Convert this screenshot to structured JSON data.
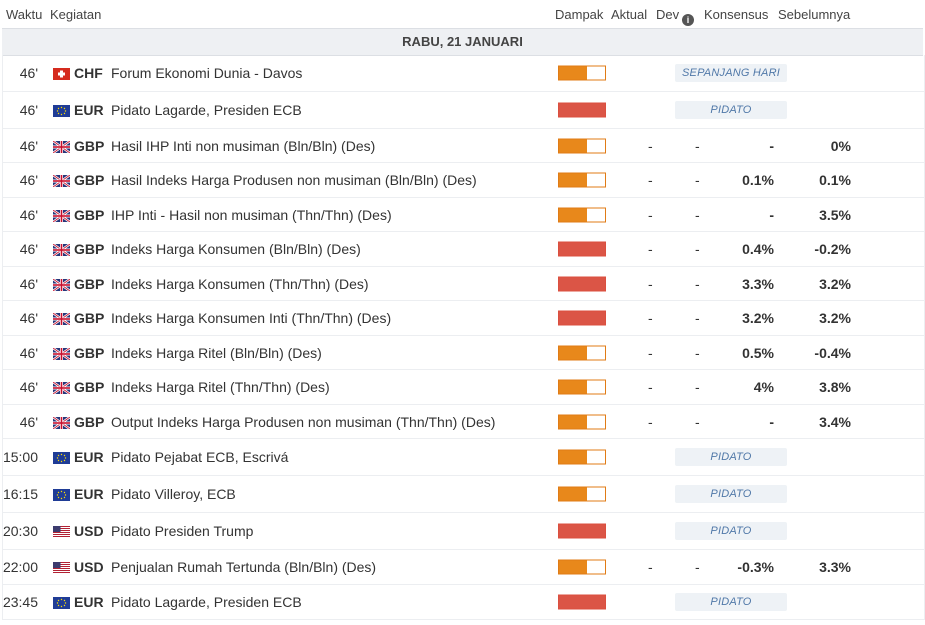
{
  "header": {
    "time": "Waktu",
    "event": "Kegiatan",
    "impact": "Dampak",
    "actual": "Aktual",
    "dev": "Dev",
    "consensus": "Konsensus",
    "previous": "Sebelumnya"
  },
  "date_label": "RABU, 21 JANUARI",
  "colors": {
    "medium_impact": "#e8881b",
    "high_impact": "#db5546",
    "badge_text": "#5078a8"
  },
  "rows": [
    {
      "time": "46'",
      "flag": "CH",
      "currency": "CHF",
      "event": "Forum Ekonomi Dunia - Davos",
      "impact": "medium",
      "impact_level": 0.6,
      "note": "SEPANJANG HARI"
    },
    {
      "time": "46'",
      "flag": "EU",
      "currency": "EUR",
      "event": "Pidato Lagarde, Presiden ECB",
      "impact": "high",
      "impact_level": 1.0,
      "note": "PIDATO"
    },
    {
      "time": "46'",
      "flag": "GB",
      "currency": "GBP",
      "event": "Hasil IHP Inti non musiman (Bln/Bln) (Des)",
      "impact": "medium",
      "impact_level": 0.6,
      "actual": "-",
      "dev": "-",
      "consensus": "-",
      "previous": "0%"
    },
    {
      "time": "46'",
      "flag": "GB",
      "currency": "GBP",
      "event": "Hasil Indeks Harga Produsen non musiman (Bln/Bln) (Des)",
      "impact": "medium",
      "impact_level": 0.6,
      "actual": "-",
      "dev": "-",
      "consensus": "0.1%",
      "previous": "0.1%"
    },
    {
      "time": "46'",
      "flag": "GB",
      "currency": "GBP",
      "event": "IHP Inti - Hasil non musiman (Thn/Thn) (Des)",
      "impact": "medium",
      "impact_level": 0.6,
      "actual": "-",
      "dev": "-",
      "consensus": "-",
      "previous": "3.5%"
    },
    {
      "time": "46'",
      "flag": "GB",
      "currency": "GBP",
      "event": "Indeks Harga Konsumen (Bln/Bln) (Des)",
      "impact": "high",
      "impact_level": 1.0,
      "actual": "-",
      "dev": "-",
      "consensus": "0.4%",
      "previous": "-0.2%"
    },
    {
      "time": "46'",
      "flag": "GB",
      "currency": "GBP",
      "event": "Indeks Harga Konsumen (Thn/Thn) (Des)",
      "impact": "high",
      "impact_level": 1.0,
      "actual": "-",
      "dev": "-",
      "consensus": "3.3%",
      "previous": "3.2%"
    },
    {
      "time": "46'",
      "flag": "GB",
      "currency": "GBP",
      "event": "Indeks Harga Konsumen Inti (Thn/Thn) (Des)",
      "impact": "high",
      "impact_level": 1.0,
      "actual": "-",
      "dev": "-",
      "consensus": "3.2%",
      "previous": "3.2%"
    },
    {
      "time": "46'",
      "flag": "GB",
      "currency": "GBP",
      "event": "Indeks Harga Ritel (Bln/Bln) (Des)",
      "impact": "medium",
      "impact_level": 0.6,
      "actual": "-",
      "dev": "-",
      "consensus": "0.5%",
      "previous": "-0.4%"
    },
    {
      "time": "46'",
      "flag": "GB",
      "currency": "GBP",
      "event": "Indeks Harga Ritel (Thn/Thn) (Des)",
      "impact": "medium",
      "impact_level": 0.6,
      "actual": "-",
      "dev": "-",
      "consensus": "4%",
      "previous": "3.8%"
    },
    {
      "time": "46'",
      "flag": "GB",
      "currency": "GBP",
      "event": "Output Indeks Harga Produsen non musiman (Thn/Thn) (Des)",
      "impact": "medium",
      "impact_level": 0.6,
      "actual": "-",
      "dev": "-",
      "consensus": "-",
      "previous": "3.4%"
    },
    {
      "time": "15:00",
      "flag": "EU",
      "currency": "EUR",
      "event": "Pidato Pejabat ECB, Escrivá",
      "impact": "medium",
      "impact_level": 0.6,
      "note": "PIDATO"
    },
    {
      "time": "16:15",
      "flag": "EU",
      "currency": "EUR",
      "event": "Pidato Villeroy, ECB",
      "impact": "medium",
      "impact_level": 0.6,
      "note": "PIDATO"
    },
    {
      "time": "20:30",
      "flag": "US",
      "currency": "USD",
      "event": "Pidato Presiden Trump",
      "impact": "high",
      "impact_level": 1.0,
      "note": "PIDATO"
    },
    {
      "time": "22:00",
      "flag": "US",
      "currency": "USD",
      "event": "Penjualan Rumah Tertunda (Bln/Bln) (Des)",
      "impact": "medium",
      "impact_level": 0.6,
      "actual": "-",
      "dev": "-",
      "consensus": "-0.3%",
      "previous": "3.3%"
    },
    {
      "time": "23:45",
      "flag": "EU",
      "currency": "EUR",
      "event": "Pidato Lagarde, Presiden ECB",
      "impact": "high",
      "impact_level": 1.0,
      "note": "PIDATO"
    }
  ]
}
